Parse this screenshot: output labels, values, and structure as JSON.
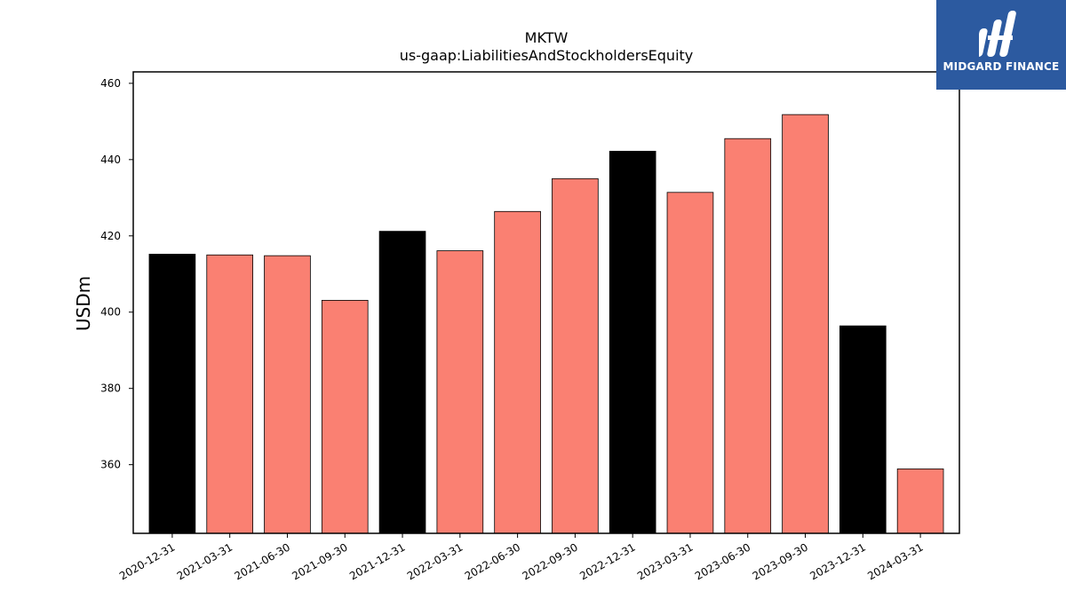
{
  "chart_data": {
    "type": "bar",
    "title": "MKTW",
    "subtitle": "us-gaap:LiabilitiesAndStockholdersEquity",
    "xlabel": "",
    "ylabel": "USDm",
    "ylim": [
      342,
      463
    ],
    "yticks": [
      360,
      380,
      400,
      420,
      440,
      460
    ],
    "grid": false,
    "categories": [
      "2020-12-31",
      "2021-03-31",
      "2021-06-30",
      "2021-09-30",
      "2021-12-31",
      "2022-03-31",
      "2022-06-30",
      "2022-09-30",
      "2022-12-31",
      "2023-03-31",
      "2023-06-30",
      "2023-09-30",
      "2023-12-31",
      "2024-03-31"
    ],
    "values": [
      415.2,
      415.0,
      414.8,
      403.1,
      421.2,
      416.1,
      426.4,
      435.0,
      442.2,
      431.4,
      445.5,
      451.8,
      396.4,
      358.9
    ],
    "bar_colors": [
      "#000000",
      "#fa8072",
      "#fa8072",
      "#fa8072",
      "#000000",
      "#fa8072",
      "#fa8072",
      "#fa8072",
      "#000000",
      "#fa8072",
      "#fa8072",
      "#fa8072",
      "#000000",
      "#fa8072"
    ]
  },
  "logo": {
    "text": "MIDGARD FINANCE",
    "background": "#2c5aa0"
  }
}
